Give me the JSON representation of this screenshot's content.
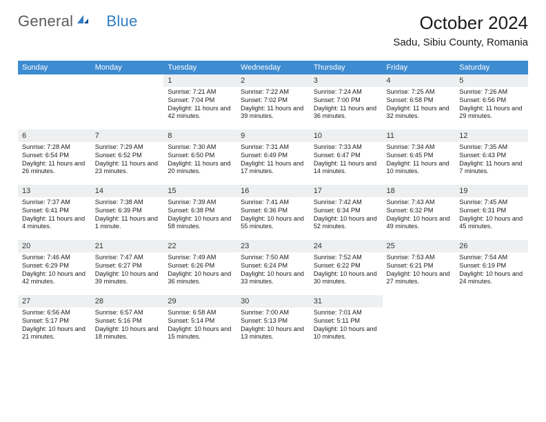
{
  "logo": {
    "text_gray": "General",
    "text_blue": "Blue"
  },
  "title": "October 2024",
  "location": "Sadu, Sibiu County, Romania",
  "colors": {
    "header_bg": "#3d8bd0",
    "header_fg": "#ffffff",
    "daynum_bg": "#edeff0",
    "rule": "#3d8bd0",
    "logo_gray": "#5a5a5a",
    "logo_blue": "#2f7bc2"
  },
  "weekdays": [
    "Sunday",
    "Monday",
    "Tuesday",
    "Wednesday",
    "Thursday",
    "Friday",
    "Saturday"
  ],
  "weeks": [
    [
      null,
      null,
      {
        "n": "1",
        "sr": "7:21 AM",
        "ss": "7:04 PM",
        "dl": "11 hours and 42 minutes."
      },
      {
        "n": "2",
        "sr": "7:22 AM",
        "ss": "7:02 PM",
        "dl": "11 hours and 39 minutes."
      },
      {
        "n": "3",
        "sr": "7:24 AM",
        "ss": "7:00 PM",
        "dl": "11 hours and 36 minutes."
      },
      {
        "n": "4",
        "sr": "7:25 AM",
        "ss": "6:58 PM",
        "dl": "11 hours and 32 minutes."
      },
      {
        "n": "5",
        "sr": "7:26 AM",
        "ss": "6:56 PM",
        "dl": "11 hours and 29 minutes."
      }
    ],
    [
      {
        "n": "6",
        "sr": "7:28 AM",
        "ss": "6:54 PM",
        "dl": "11 hours and 26 minutes."
      },
      {
        "n": "7",
        "sr": "7:29 AM",
        "ss": "6:52 PM",
        "dl": "11 hours and 23 minutes."
      },
      {
        "n": "8",
        "sr": "7:30 AM",
        "ss": "6:50 PM",
        "dl": "11 hours and 20 minutes."
      },
      {
        "n": "9",
        "sr": "7:31 AM",
        "ss": "6:49 PM",
        "dl": "11 hours and 17 minutes."
      },
      {
        "n": "10",
        "sr": "7:33 AM",
        "ss": "6:47 PM",
        "dl": "11 hours and 14 minutes."
      },
      {
        "n": "11",
        "sr": "7:34 AM",
        "ss": "6:45 PM",
        "dl": "11 hours and 10 minutes."
      },
      {
        "n": "12",
        "sr": "7:35 AM",
        "ss": "6:43 PM",
        "dl": "11 hours and 7 minutes."
      }
    ],
    [
      {
        "n": "13",
        "sr": "7:37 AM",
        "ss": "6:41 PM",
        "dl": "11 hours and 4 minutes."
      },
      {
        "n": "14",
        "sr": "7:38 AM",
        "ss": "6:39 PM",
        "dl": "11 hours and 1 minute."
      },
      {
        "n": "15",
        "sr": "7:39 AM",
        "ss": "6:38 PM",
        "dl": "10 hours and 58 minutes."
      },
      {
        "n": "16",
        "sr": "7:41 AM",
        "ss": "6:36 PM",
        "dl": "10 hours and 55 minutes."
      },
      {
        "n": "17",
        "sr": "7:42 AM",
        "ss": "6:34 PM",
        "dl": "10 hours and 52 minutes."
      },
      {
        "n": "18",
        "sr": "7:43 AM",
        "ss": "6:32 PM",
        "dl": "10 hours and 49 minutes."
      },
      {
        "n": "19",
        "sr": "7:45 AM",
        "ss": "6:31 PM",
        "dl": "10 hours and 45 minutes."
      }
    ],
    [
      {
        "n": "20",
        "sr": "7:46 AM",
        "ss": "6:29 PM",
        "dl": "10 hours and 42 minutes."
      },
      {
        "n": "21",
        "sr": "7:47 AM",
        "ss": "6:27 PM",
        "dl": "10 hours and 39 minutes."
      },
      {
        "n": "22",
        "sr": "7:49 AM",
        "ss": "6:26 PM",
        "dl": "10 hours and 36 minutes."
      },
      {
        "n": "23",
        "sr": "7:50 AM",
        "ss": "6:24 PM",
        "dl": "10 hours and 33 minutes."
      },
      {
        "n": "24",
        "sr": "7:52 AM",
        "ss": "6:22 PM",
        "dl": "10 hours and 30 minutes."
      },
      {
        "n": "25",
        "sr": "7:53 AM",
        "ss": "6:21 PM",
        "dl": "10 hours and 27 minutes."
      },
      {
        "n": "26",
        "sr": "7:54 AM",
        "ss": "6:19 PM",
        "dl": "10 hours and 24 minutes."
      }
    ],
    [
      {
        "n": "27",
        "sr": "6:56 AM",
        "ss": "5:17 PM",
        "dl": "10 hours and 21 minutes."
      },
      {
        "n": "28",
        "sr": "6:57 AM",
        "ss": "5:16 PM",
        "dl": "10 hours and 18 minutes."
      },
      {
        "n": "29",
        "sr": "6:58 AM",
        "ss": "5:14 PM",
        "dl": "10 hours and 15 minutes."
      },
      {
        "n": "30",
        "sr": "7:00 AM",
        "ss": "5:13 PM",
        "dl": "10 hours and 13 minutes."
      },
      {
        "n": "31",
        "sr": "7:01 AM",
        "ss": "5:11 PM",
        "dl": "10 hours and 10 minutes."
      },
      null,
      null
    ]
  ],
  "labels": {
    "sunrise": "Sunrise:",
    "sunset": "Sunset:",
    "daylight": "Daylight:"
  }
}
